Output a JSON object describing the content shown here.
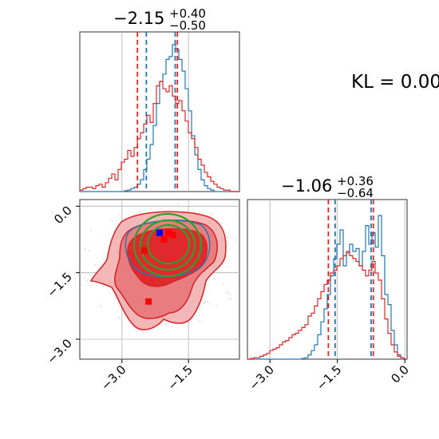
{
  "chart_data": {
    "type": "corner",
    "kl_text": "KL = 0.00",
    "param_titles": [
      {
        "main": "−2.15",
        "sup": "+0.40",
        "sub": "−0.50"
      },
      {
        "main": "−1.06",
        "sup": "+0.36",
        "sub": "−0.64"
      }
    ],
    "x_ticks": [
      {
        "value": -3.0,
        "label": "−3.0"
      },
      {
        "value": -1.5,
        "label": "−1.5"
      }
    ],
    "y_ticks": [
      {
        "value": 0.0,
        "label": "0.0"
      },
      {
        "value": -1.5,
        "label": "−1.5"
      },
      {
        "value": -3.0,
        "label": "−3.0"
      }
    ],
    "y_x_ticks": [
      {
        "value": -3.0,
        "label": "−3.0"
      },
      {
        "value": -1.5,
        "label": "−1.5"
      },
      {
        "value": 0.0,
        "label": "0.0"
      }
    ],
    "ranges": {
      "x": [
        -3.95,
        -0.35
      ],
      "y": [
        -3.45,
        0.15
      ],
      "y_hist": [
        -3.5,
        0.05
      ]
    },
    "grid": true,
    "colors": {
      "blue": "#1f77b4",
      "red": "#d62728",
      "green": "#2ca02c",
      "fill_light": "#f4b7b8",
      "fill_mid": "#e97c7e",
      "fill_dark": "#e0292c",
      "marker_blue": "#0000ff",
      "marker_red": "#ff0000",
      "grid": "#b0b0b0"
    },
    "series": [
      {
        "name": "",
        "color": "#1f77b4",
        "x_quantiles": [
          -2.45,
          -1.8
        ],
        "y_quantiles": [
          -1.55,
          -0.75
        ],
        "x_hist": [
          0,
          0,
          0,
          0,
          0,
          0,
          0,
          0,
          0,
          0,
          0,
          0,
          0,
          0,
          0.005,
          0.01,
          0.02,
          0.03,
          0.05,
          0.08,
          0.15,
          0.22,
          0.32,
          0.45,
          0.6,
          0.75,
          0.8,
          0.9,
          0.92,
          1.0,
          0.97,
          0.9,
          0.82,
          0.7,
          0.55,
          0.38,
          0.25,
          0.15,
          0.08,
          0.04,
          0.02,
          0.01,
          0,
          0,
          0,
          0,
          0,
          0,
          0,
          0
        ],
        "y_hist": [
          0,
          0,
          0,
          0,
          0,
          0,
          0,
          0,
          0,
          0,
          0,
          0,
          0,
          0,
          0,
          0,
          0,
          0.005,
          0.01,
          0.03,
          0.06,
          0.1,
          0.17,
          0.26,
          0.35,
          0.45,
          0.58,
          0.7,
          0.8,
          0.9,
          0.65,
          0.74,
          0.8,
          0.75,
          0.77,
          0.65,
          0.75,
          0.93,
          0.8,
          0.88,
          0.78,
          1.0,
          0.72,
          0.45,
          0.38,
          0.2,
          0.1,
          0.03,
          0.01,
          0
        ]
      },
      {
        "name": "",
        "color": "#d62728",
        "x_quantiles": [
          -2.65,
          -1.75
        ],
        "y_quantiles": [
          -1.7,
          -0.7
        ],
        "x_hist": [
          0.01,
          0.02,
          0.03,
          0.03,
          0.02,
          0.04,
          0.05,
          0.03,
          0.06,
          0.09,
          0.12,
          0.08,
          0.15,
          0.2,
          0.22,
          0.28,
          0.24,
          0.3,
          0.36,
          0.4,
          0.46,
          0.52,
          0.47,
          0.6,
          0.72,
          0.75,
          0.7,
          0.68,
          0.72,
          0.65,
          0.6,
          0.62,
          0.55,
          0.48,
          0.4,
          0.36,
          0.3,
          0.22,
          0.18,
          0.13,
          0.1,
          0.07,
          0.05,
          0.03,
          0.02,
          0.01,
          0.01,
          0,
          0,
          0
        ],
        "y_hist": [
          0,
          0.005,
          0.01,
          0.01,
          0.02,
          0.03,
          0.04,
          0.06,
          0.07,
          0.08,
          0.1,
          0.12,
          0.13,
          0.15,
          0.17,
          0.18,
          0.2,
          0.22,
          0.24,
          0.3,
          0.32,
          0.37,
          0.42,
          0.47,
          0.52,
          0.55,
          0.6,
          0.62,
          0.65,
          0.7,
          0.72,
          0.75,
          0.72,
          0.7,
          0.68,
          0.65,
          0.62,
          0.58,
          0.62,
          0.68,
          0.6,
          0.55,
          0.42,
          0.28,
          0.18,
          0.1,
          0.05,
          0.02,
          0.01,
          0
        ]
      }
    ],
    "markers": [
      {
        "color": "#0000ff",
        "x": -2.15,
        "y": -0.6
      },
      {
        "color": "#ff0000",
        "x": -1.95,
        "y": -0.6
      },
      {
        "color": "#ff0000",
        "x": -2.05,
        "y": -0.75
      },
      {
        "color": "#ff0000",
        "x": -1.85,
        "y": -0.65
      },
      {
        "color": "#ff0000",
        "x": -2.5,
        "y": -1.0
      },
      {
        "color": "#ff0000",
        "x": -2.4,
        "y": -2.15
      }
    ]
  }
}
